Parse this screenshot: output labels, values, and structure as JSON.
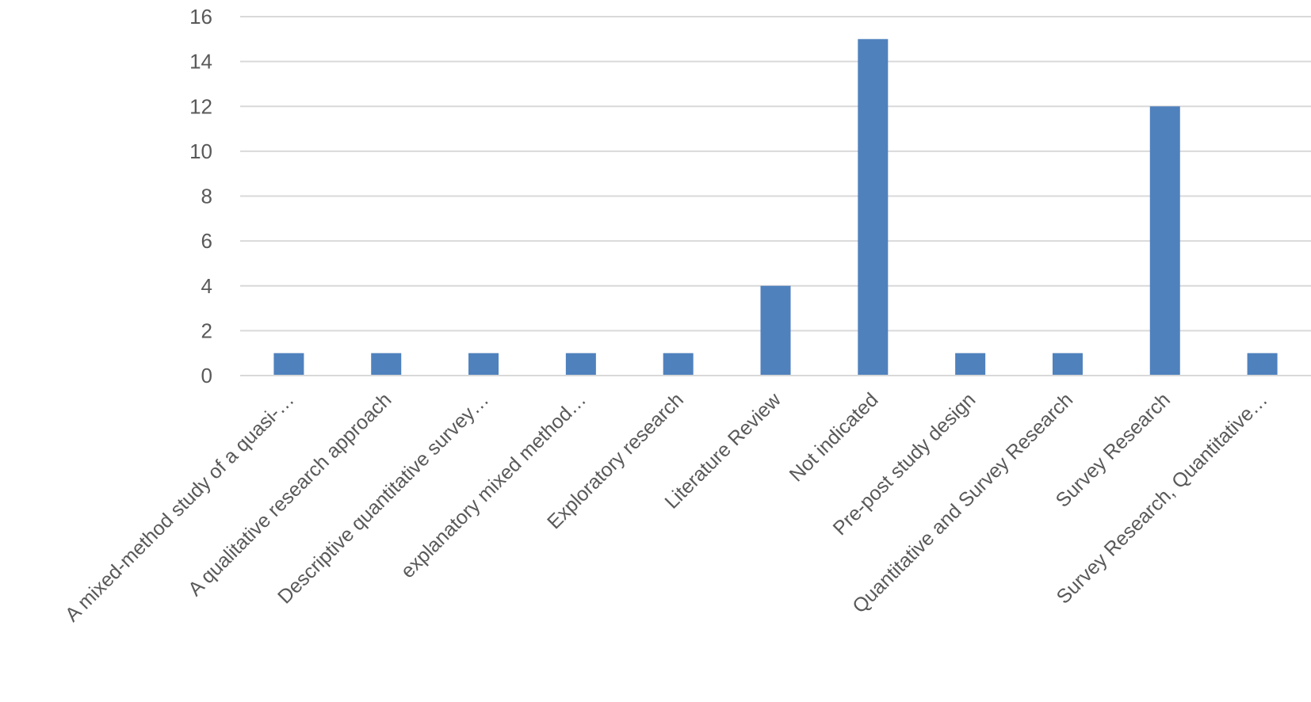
{
  "chart_data": {
    "type": "bar",
    "categories": [
      "A mixed-method study of a quasi-…",
      "A qualitative research approach",
      "Descriptive quantitative survey…",
      "explanatory mixed method…",
      "Exploratory research",
      "Literature Review",
      "Not indicated",
      "Pre-post study design",
      "Quantitative and Survey Research",
      "Survey Research",
      "Survey Research, Quantitative…"
    ],
    "values": [
      1,
      1,
      1,
      1,
      1,
      4,
      15,
      1,
      1,
      12,
      1
    ],
    "title": "",
    "xlabel": "",
    "ylabel": "",
    "ylim": [
      0,
      16
    ],
    "yticks": [
      0,
      2,
      4,
      6,
      8,
      10,
      12,
      14,
      16
    ],
    "grid": true,
    "legend": "none",
    "colors": {
      "bar": "#4f81bd",
      "grid": "#d9d9d9",
      "axis": "#d9d9d9",
      "text": "#595959"
    }
  }
}
